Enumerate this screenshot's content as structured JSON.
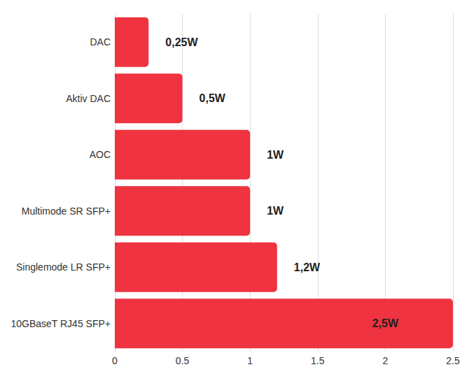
{
  "chart_data": {
    "type": "bar",
    "orientation": "horizontal",
    "categories": [
      "DAC",
      "Aktiv DAC",
      "AOC",
      "Multimode SR SFP+",
      "Singlemode LR SFP+",
      "10GBaseT RJ45 SFP+"
    ],
    "values": [
      0.25,
      0.5,
      1,
      1,
      1.2,
      2.5
    ],
    "value_labels": [
      "0,25W",
      "0,5W",
      "1W",
      "1W",
      "1,2W",
      "2,5W"
    ],
    "color": "#ef3340",
    "xlim": [
      0,
      2.5
    ],
    "xticks": [
      0,
      0.5,
      1,
      1.5,
      2,
      2.5
    ],
    "grid": true,
    "data_labels": true
  }
}
